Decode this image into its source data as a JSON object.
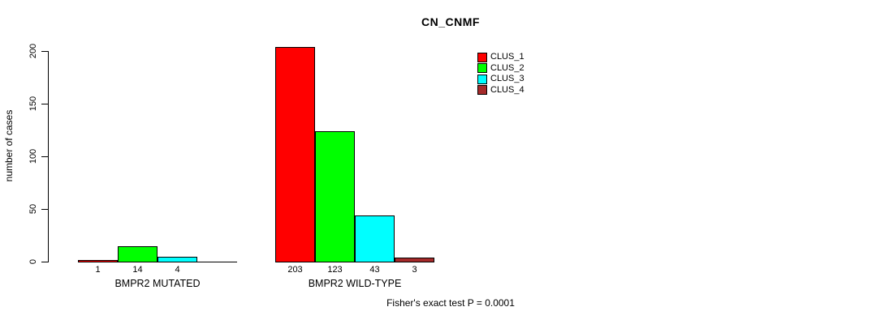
{
  "chart_data": {
    "type": "bar",
    "title": "CN_CNMF",
    "ylabel": "number of cases",
    "xlabel": "",
    "ylim": [
      0,
      200
    ],
    "yticks": [
      0,
      50,
      100,
      150,
      200
    ],
    "grid": false,
    "legend_position": "top-right",
    "categories": [
      "BMPR2 MUTATED",
      "BMPR2 WILD-TYPE"
    ],
    "series": [
      {
        "name": "CLUS_1",
        "color": "#FF0000",
        "values": [
          1,
          203
        ]
      },
      {
        "name": "CLUS_2",
        "color": "#00FF00",
        "values": [
          14,
          123
        ]
      },
      {
        "name": "CLUS_3",
        "color": "#00FFFF",
        "values": [
          4,
          43
        ]
      },
      {
        "name": "CLUS_4",
        "color": "#A52A2A",
        "values": [
          0,
          3
        ]
      }
    ],
    "bar_value_labels": [
      [
        "1",
        "14",
        "4",
        ""
      ],
      [
        "203",
        "123",
        "43",
        "3"
      ]
    ],
    "annotation": "Fisher's exact test P = 0.0001"
  },
  "colors": {
    "background": "#FFFFFF",
    "axis": "#000000",
    "bar_border": "#000000"
  }
}
